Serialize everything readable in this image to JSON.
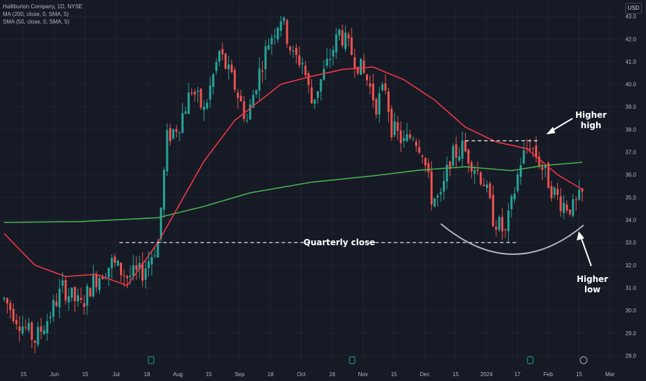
{
  "legend": {
    "title": "Halliburton Company, 1D, NYSE",
    "ma200": "MA (200, close, 0, SMA, 5)",
    "sma50": "SMA (50, close, 0, SMA, 5)"
  },
  "currency_button": "USD",
  "annotations": {
    "quarterly_close": "Quarterly close",
    "higher_high": [
      "Higher",
      "high"
    ],
    "higher_low": [
      "Higher",
      "low"
    ]
  },
  "colors": {
    "background": "#161a25",
    "up": "#26a69a",
    "down": "#ef5350",
    "ma200": "#4caf50",
    "sma50": "#f23645",
    "grid": "#1f2430",
    "axis_text": "#b2b5be"
  },
  "chart_data": {
    "type": "candlestick",
    "symbol": "Halliburton Company, 1D, NYSE",
    "ylim": [
      27.8,
      43.6
    ],
    "y_ticks": [
      28.0,
      29.0,
      30.0,
      31.0,
      32.0,
      33.0,
      34.0,
      35.0,
      36.0,
      37.0,
      38.0,
      39.0,
      40.0,
      41.0,
      42.0,
      43.0
    ],
    "x_ticks": [
      "15",
      "Jun",
      "15",
      "Jul",
      "18",
      "Aug",
      "15",
      "Sep",
      "18",
      "Oct",
      "16",
      "Nov",
      "15",
      "Dec",
      "15",
      "2024",
      "17",
      "Feb",
      "15",
      "Mar"
    ],
    "close_path": [
      [
        0,
        30.5
      ],
      [
        10,
        29.5
      ],
      [
        20,
        28.7
      ],
      [
        28,
        29.6
      ],
      [
        38,
        31.0
      ],
      [
        50,
        30.2
      ],
      [
        58,
        31.3
      ],
      [
        70,
        32.1
      ],
      [
        80,
        31.5
      ],
      [
        90,
        31.7
      ],
      [
        100,
        33.0
      ],
      [
        106,
        37.6
      ],
      [
        114,
        38.3
      ],
      [
        122,
        39.8
      ],
      [
        130,
        38.8
      ],
      [
        140,
        41.4
      ],
      [
        150,
        39.9
      ],
      [
        158,
        38.4
      ],
      [
        164,
        40.1
      ],
      [
        172,
        41.9
      ],
      [
        180,
        43.0
      ],
      [
        188,
        41.2
      ],
      [
        194,
        41.0
      ],
      [
        200,
        39.2
      ],
      [
        208,
        40.5
      ],
      [
        218,
        42.3
      ],
      [
        226,
        41.4
      ],
      [
        236,
        40.2
      ],
      [
        242,
        39.1
      ],
      [
        248,
        39.9
      ],
      [
        252,
        38.1
      ],
      [
        260,
        37.4
      ],
      [
        266,
        37.8
      ],
      [
        272,
        37.1
      ],
      [
        278,
        35.0
      ],
      [
        284,
        34.9
      ],
      [
        290,
        36.7
      ],
      [
        298,
        37.2
      ],
      [
        304,
        36.6
      ],
      [
        312,
        35.7
      ],
      [
        318,
        34.1
      ],
      [
        326,
        33.4
      ],
      [
        332,
        35.3
      ],
      [
        336,
        36.6
      ],
      [
        342,
        37.4
      ],
      [
        350,
        36.3
      ],
      [
        356,
        35.4
      ],
      [
        362,
        34.8
      ],
      [
        370,
        34.5
      ],
      [
        376,
        35.1
      ]
    ],
    "ma200": [
      [
        0,
        33.89
      ],
      [
        50,
        33.93
      ],
      [
        100,
        34.1
      ],
      [
        130,
        34.6
      ],
      [
        160,
        35.2
      ],
      [
        200,
        35.67
      ],
      [
        240,
        35.95
      ],
      [
        270,
        36.2
      ],
      [
        300,
        36.35
      ],
      [
        330,
        36.18
      ],
      [
        350,
        36.4
      ],
      [
        376,
        36.55
      ]
    ],
    "sma50": [
      [
        0,
        33.4
      ],
      [
        20,
        32.0
      ],
      [
        40,
        31.5
      ],
      [
        60,
        31.6
      ],
      [
        80,
        31.1
      ],
      [
        100,
        33.0
      ],
      [
        130,
        36.6
      ],
      [
        150,
        38.4
      ],
      [
        180,
        40.0
      ],
      [
        200,
        40.35
      ],
      [
        220,
        40.65
      ],
      [
        240,
        40.76
      ],
      [
        260,
        40.2
      ],
      [
        280,
        39.3
      ],
      [
        300,
        38.1
      ],
      [
        320,
        37.45
      ],
      [
        340,
        37.15
      ],
      [
        360,
        36.0
      ],
      [
        376,
        35.35
      ]
    ],
    "levels": [
      {
        "label": "Quarterly close",
        "y": 33.0,
        "from": 75,
        "to": 334
      },
      {
        "y": 37.5,
        "from": 300,
        "to": 348
      }
    ],
    "annotations": [
      {
        "text": "Higher high",
        "pointer": "arrow to recent swing high"
      },
      {
        "text": "Higher low",
        "pointer": "arrow to rounded bottom"
      }
    ],
    "grid": true,
    "legend_position": "top-left"
  }
}
